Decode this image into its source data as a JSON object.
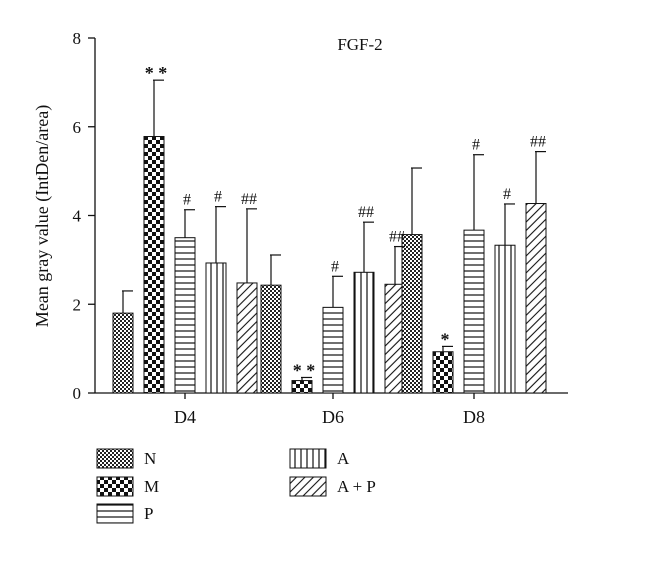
{
  "chart_data": {
    "type": "bar",
    "title": "FGF-2",
    "xlabel": "",
    "ylabel": "Mean gray value (IntDen/area)",
    "ylim": [
      0,
      8
    ],
    "yticks": [
      "0",
      "2",
      "4",
      "6",
      "8"
    ],
    "categories": [
      "D4",
      "D6",
      "D8"
    ],
    "legend_placement": "bottom",
    "grid": false,
    "series": [
      {
        "name": "N",
        "pattern": "fine-check",
        "values": [
          1.8,
          2.43,
          3.57
        ],
        "errors": [
          0.5,
          0.68,
          1.5
        ],
        "annotations": [
          "",
          "",
          ""
        ]
      },
      {
        "name": "M",
        "pattern": "coarse-check",
        "values": [
          5.78,
          0.28,
          0.93
        ],
        "errors": [
          1.27,
          0.07,
          0.12
        ],
        "annotations": [
          "**",
          "**",
          "*"
        ]
      },
      {
        "name": "P",
        "pattern": "horizontal",
        "values": [
          3.5,
          1.93,
          3.67
        ],
        "errors": [
          0.63,
          0.7,
          1.7
        ],
        "annotations": [
          "#",
          "#",
          "#"
        ]
      },
      {
        "name": "A",
        "pattern": "vertical",
        "values": [
          2.93,
          2.72,
          3.33
        ],
        "errors": [
          1.27,
          1.13,
          0.93
        ],
        "annotations": [
          "#",
          "##",
          "#"
        ]
      },
      {
        "name": "A + P",
        "pattern": "diagonal",
        "values": [
          2.48,
          2.45,
          4.27
        ],
        "errors": [
          1.67,
          0.85,
          1.17
        ],
        "annotations": [
          "##",
          "##",
          "##"
        ]
      }
    ]
  }
}
